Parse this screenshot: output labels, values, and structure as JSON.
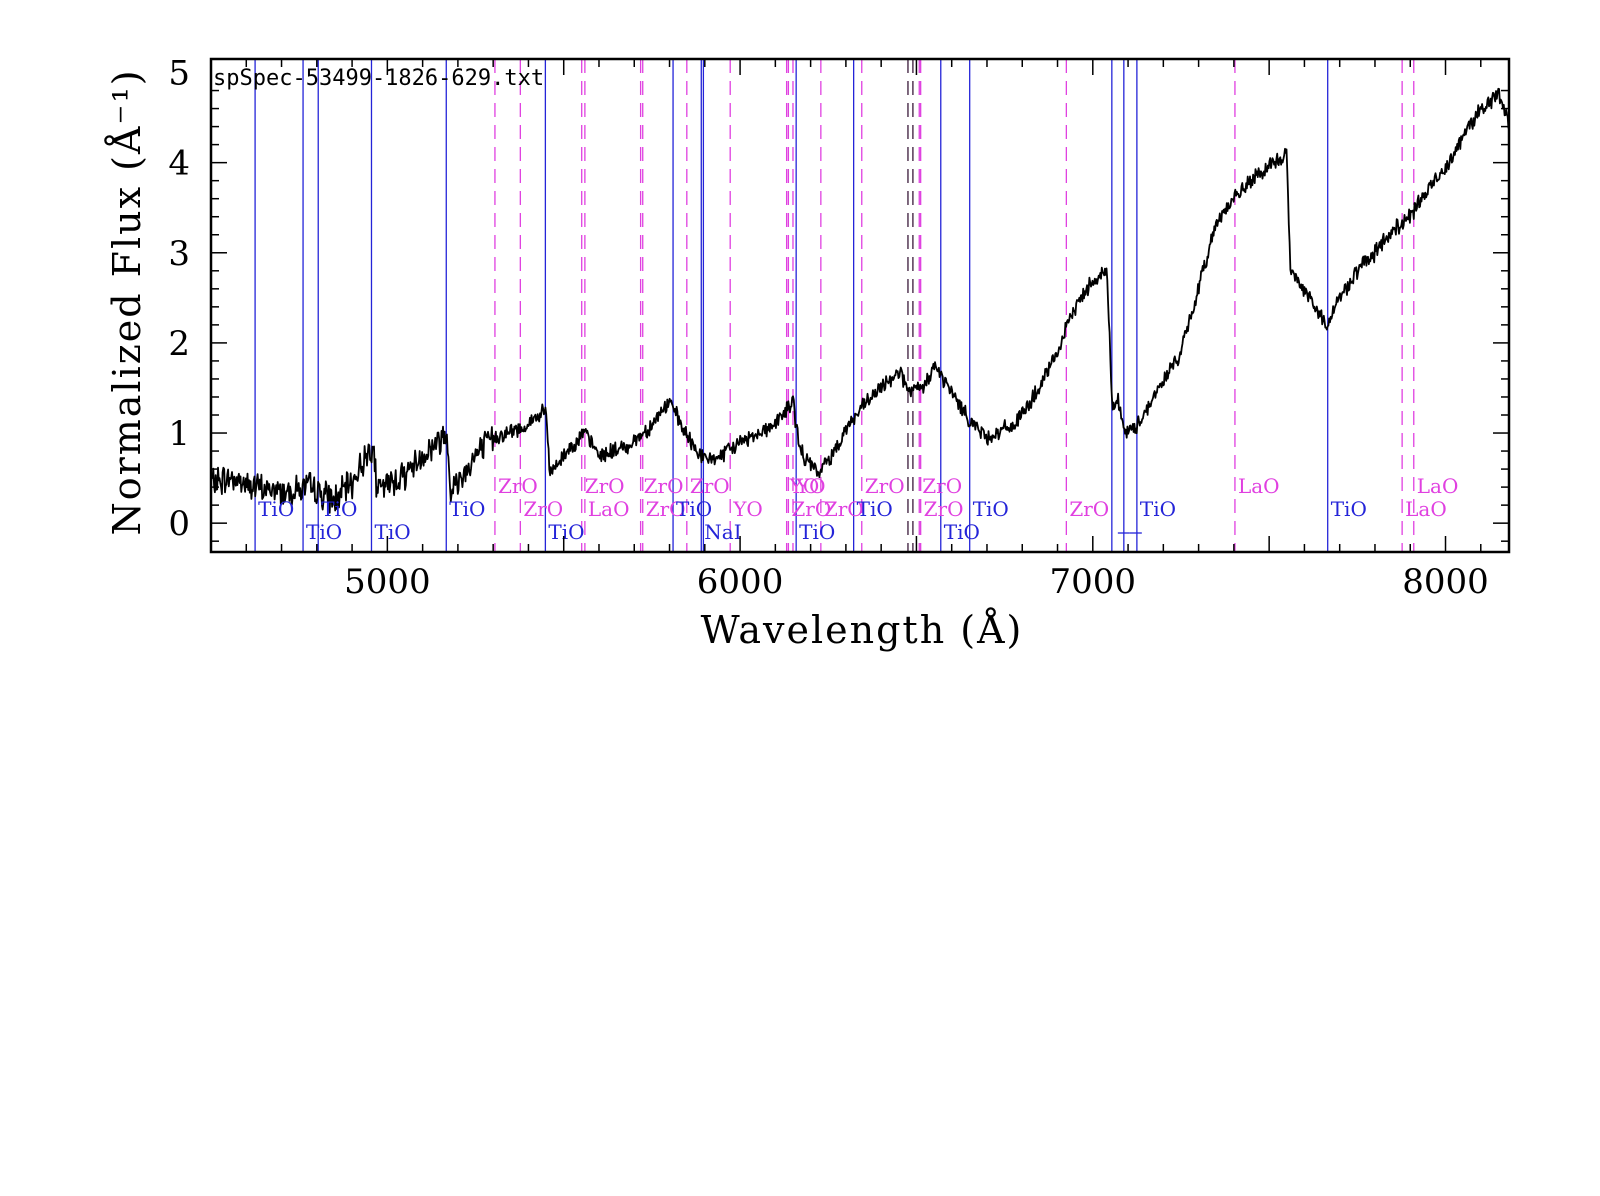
{
  "chart_data": {
    "type": "line",
    "title": "spSpec-53499-1826-629.txt",
    "xlabel": "Wavelength (Å)",
    "ylabel": "Normalized Flux  (Å⁻¹)",
    "xlim": [
      4500,
      8180
    ],
    "ylim": [
      -0.32,
      5.15
    ],
    "xticks": [
      5000,
      6000,
      7000,
      8000
    ],
    "yticks": [
      0,
      1,
      2,
      3,
      4,
      5
    ],
    "grid": false,
    "colors": {
      "spectrum": "#000000",
      "solid_lines": "#2424d8",
      "dashed_lines": "#e040e0",
      "dark_dashed": "#3a1a3a"
    },
    "series": [
      {
        "anchors": [
          [
            4500,
            0.45
          ],
          [
            4560,
            0.5
          ],
          [
            4620,
            0.4
          ],
          [
            4700,
            0.35
          ],
          [
            4780,
            0.4
          ],
          [
            4850,
            0.25
          ],
          [
            4900,
            0.45
          ],
          [
            4960,
            0.9
          ],
          [
            4970,
            0.35
          ],
          [
            5050,
            0.55
          ],
          [
            5100,
            0.75
          ],
          [
            5170,
            1.0
          ],
          [
            5180,
            0.35
          ],
          [
            5250,
            0.75
          ],
          [
            5300,
            0.95
          ],
          [
            5380,
            1.05
          ],
          [
            5450,
            1.25
          ],
          [
            5460,
            0.55
          ],
          [
            5520,
            0.85
          ],
          [
            5560,
            1.0
          ],
          [
            5600,
            0.75
          ],
          [
            5680,
            0.85
          ],
          [
            5740,
            1.05
          ],
          [
            5800,
            1.35
          ],
          [
            5850,
            0.95
          ],
          [
            5900,
            0.7
          ],
          [
            5950,
            0.75
          ],
          [
            6000,
            0.9
          ],
          [
            6100,
            1.1
          ],
          [
            6150,
            1.35
          ],
          [
            6170,
            0.8
          ],
          [
            6220,
            0.55
          ],
          [
            6260,
            0.75
          ],
          [
            6300,
            1.05
          ],
          [
            6350,
            1.3
          ],
          [
            6400,
            1.5
          ],
          [
            6450,
            1.7
          ],
          [
            6480,
            1.45
          ],
          [
            6520,
            1.5
          ],
          [
            6550,
            1.75
          ],
          [
            6600,
            1.45
          ],
          [
            6650,
            1.15
          ],
          [
            6700,
            0.95
          ],
          [
            6780,
            1.1
          ],
          [
            6850,
            1.5
          ],
          [
            6900,
            1.9
          ],
          [
            6950,
            2.4
          ],
          [
            7000,
            2.7
          ],
          [
            7040,
            2.8
          ],
          [
            7055,
            1.3
          ],
          [
            7070,
            1.4
          ],
          [
            7090,
            1.0
          ],
          [
            7120,
            1.05
          ],
          [
            7180,
            1.45
          ],
          [
            7250,
            1.9
          ],
          [
            7300,
            2.6
          ],
          [
            7350,
            3.35
          ],
          [
            7400,
            3.6
          ],
          [
            7450,
            3.8
          ],
          [
            7500,
            3.95
          ],
          [
            7550,
            4.1
          ],
          [
            7560,
            2.8
          ],
          [
            7600,
            2.6
          ],
          [
            7660,
            2.2
          ],
          [
            7700,
            2.5
          ],
          [
            7750,
            2.8
          ],
          [
            7800,
            3.0
          ],
          [
            7850,
            3.25
          ],
          [
            7900,
            3.4
          ],
          [
            7950,
            3.7
          ],
          [
            8000,
            3.95
          ],
          [
            8050,
            4.3
          ],
          [
            8100,
            4.6
          ],
          [
            8150,
            4.75
          ],
          [
            8180,
            4.45
          ]
        ]
      }
    ],
    "line_groups": [
      {
        "label": "TiO",
        "color": "blue",
        "style": "solid",
        "wl": [
          4625
        ],
        "tier": 0
      },
      {
        "label": "TiO",
        "color": "blue",
        "style": "solid",
        "wl": [
          4761
        ],
        "tier": 1
      },
      {
        "label": "TiO",
        "color": "blue",
        "style": "solid",
        "wl": [
          4804
        ],
        "tier": 0
      },
      {
        "label": "TiO",
        "color": "blue",
        "style": "solid",
        "wl": [
          4955
        ],
        "tier": 1
      },
      {
        "label": "TiO",
        "color": "blue",
        "style": "solid",
        "wl": [
          5167
        ],
        "tier": 0
      },
      {
        "label": "ZrO",
        "color": "magenta",
        "style": "dashed",
        "wl": [
          5305
        ],
        "tier": -1
      },
      {
        "label": "ZrO",
        "color": "magenta",
        "style": "dashed",
        "wl": [
          5377
        ],
        "tier": 0
      },
      {
        "label": "TiO",
        "color": "blue",
        "style": "solid",
        "wl": [
          5448
        ],
        "tier": 1
      },
      {
        "label": "ZrO",
        "color": "magenta",
        "style": "dashed",
        "wl": [
          5551
        ],
        "tier": -1
      },
      {
        "label": "LaO",
        "color": "magenta",
        "style": "dashed",
        "wl": [
          5560
        ],
        "tier": 0
      },
      {
        "label": "ZrO",
        "color": "magenta",
        "style": "dashed",
        "wl": [
          5718
        ],
        "tier": -1
      },
      {
        "label": "ZrO",
        "color": "magenta",
        "style": "dashed",
        "wl": [
          5724
        ],
        "tier": 0
      },
      {
        "label": "TiO",
        "color": "blue",
        "style": "solid",
        "wl": [
          5810
        ],
        "tier": 0
      },
      {
        "label": "ZrO",
        "color": "magenta",
        "style": "dashed",
        "wl": [
          5849
        ],
        "tier": -1
      },
      {
        "label": "NaI",
        "color": "blue",
        "style": "solid",
        "wl": [
          5890,
          5896
        ],
        "tier": 1
      },
      {
        "label": "YO",
        "color": "magenta",
        "style": "dashed",
        "wl": [
          5972
        ],
        "tier": 0
      },
      {
        "label": "YO",
        "color": "magenta",
        "style": "dashed",
        "wl": [
          6132
        ],
        "tier": -1
      },
      {
        "label": "ZrO",
        "color": "magenta",
        "style": "dashed",
        "wl": [
          6137
        ],
        "tier": 0
      },
      {
        "label": "YO",
        "color": "magenta",
        "style": "dashed",
        "wl": [
          6150
        ],
        "tier": -1
      },
      {
        "label": "TiO",
        "color": "blue",
        "style": "solid",
        "wl": [
          6159
        ],
        "tier": 1
      },
      {
        "label": "ZrO",
        "color": "magenta",
        "style": "dashed",
        "wl": [
          6229
        ],
        "tier": 0
      },
      {
        "label": "TiO",
        "color": "blue",
        "style": "solid",
        "wl": [
          6322
        ],
        "tier": 0
      },
      {
        "label": "ZrO",
        "color": "magenta",
        "style": "dashed",
        "wl": [
          6345
        ],
        "tier": -1
      },
      {
        "label": "",
        "color": "dark",
        "style": "dashed",
        "wl": [
          6476,
          6490
        ],
        "tier": -1
      },
      {
        "label": "ZrO",
        "color": "magenta",
        "style": "dashed",
        "wl": [
          6508
        ],
        "tier": -1
      },
      {
        "label": "ZrO",
        "color": "magenta",
        "style": "dashed",
        "wl": [
          6512
        ],
        "tier": 0
      },
      {
        "label": "TiO",
        "color": "blue",
        "style": "solid",
        "wl": [
          6569
        ],
        "tier": 1
      },
      {
        "label": "TiO",
        "color": "blue",
        "style": "solid",
        "wl": [
          6651
        ],
        "tier": 0
      },
      {
        "label": "ZrO",
        "color": "magenta",
        "style": "dashed",
        "wl": [
          6925
        ],
        "tier": 0
      },
      {
        "label": "",
        "color": "blue",
        "style": "solid",
        "wl": [
          7054,
          7088
        ],
        "tier": 1
      },
      {
        "label": "TiO",
        "color": "blue",
        "style": "solid",
        "wl": [
          7125
        ],
        "tier": 0
      },
      {
        "label": "LaO",
        "color": "magenta",
        "style": "dashed",
        "wl": [
          7403
        ],
        "tier": -1
      },
      {
        "label": "TiO",
        "color": "blue",
        "style": "solid",
        "wl": [
          7666
        ],
        "tier": 0
      },
      {
        "label": "LaO",
        "color": "magenta",
        "style": "dashed",
        "wl": [
          7877
        ],
        "tier": 0
      },
      {
        "label": "LaO",
        "color": "magenta",
        "style": "dashed",
        "wl": [
          7910
        ],
        "tier": -1
      }
    ]
  }
}
